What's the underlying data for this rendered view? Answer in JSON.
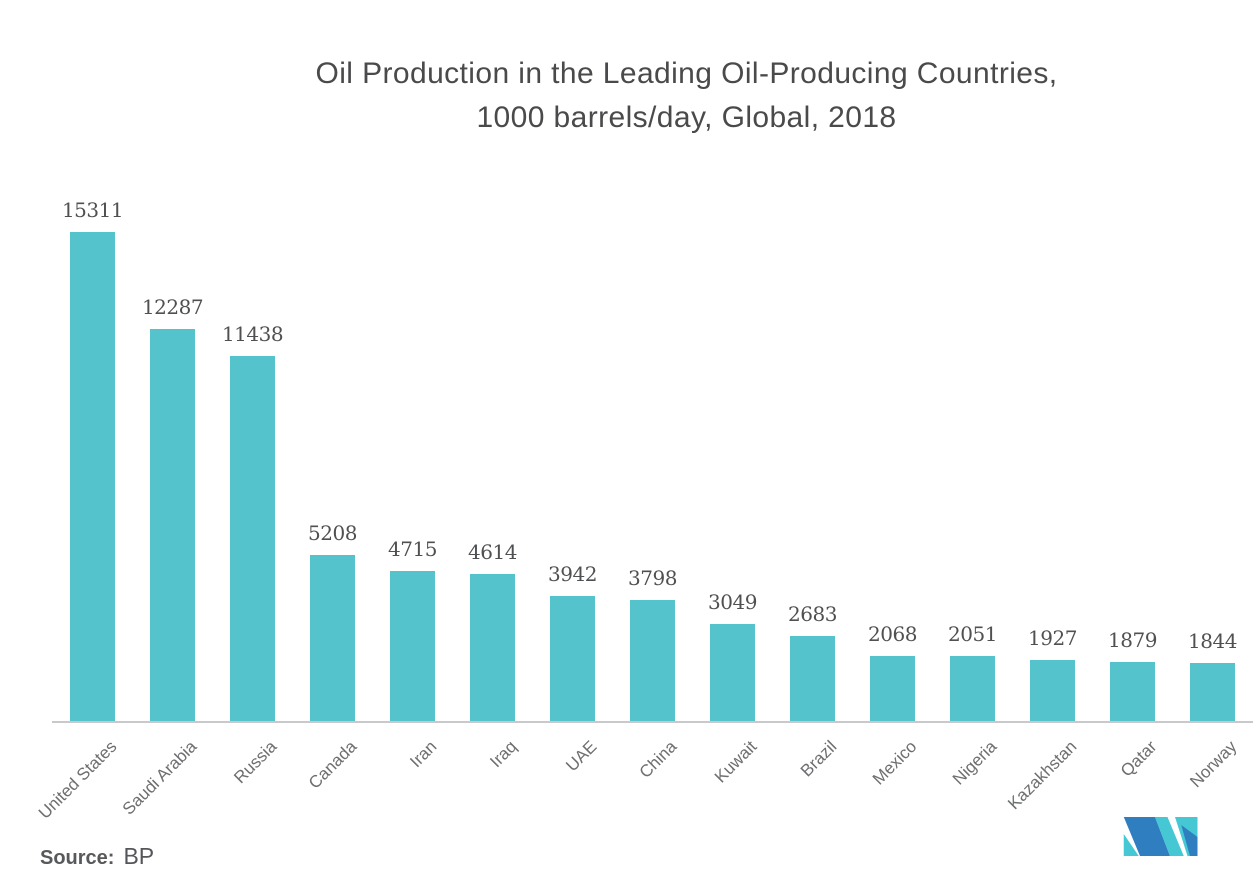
{
  "title": {
    "line1": "Oil Production in the Leading Oil-Producing Countries,",
    "line2": "1000 barrels/day, Global, 2018"
  },
  "source": {
    "label": "Source:",
    "value": "BP"
  },
  "logo": {
    "name": "mordor-intelligence-logo",
    "blue": "#2F7EC0",
    "teal": "#45C7D4"
  },
  "chart_data": {
    "type": "bar",
    "title": "Oil Production in the Leading Oil-Producing Countries, 1000 barrels/day, Global, 2018",
    "categories": [
      "United States",
      "Saudi Arabia",
      "Russia",
      "Canada",
      "Iran",
      "Iraq",
      "UAE",
      "China",
      "Kuwait",
      "Brazil",
      "Mexico",
      "Nigeria",
      "Kazakhstan",
      "Qatar",
      "Norway"
    ],
    "values": [
      15311,
      12287,
      11438,
      5208,
      4715,
      4614,
      3942,
      3798,
      3049,
      2683,
      2068,
      2051,
      1927,
      1879,
      1844
    ],
    "xlabel": "",
    "ylabel": "",
    "ylim": [
      0,
      15311
    ],
    "grid": false,
    "legend": false,
    "value_labels": true,
    "bar_color": "#54C3CB",
    "value_label_color": "#4F5052",
    "category_label_color": "#6D6E70",
    "axis_line_color": "#C9C9C9"
  }
}
